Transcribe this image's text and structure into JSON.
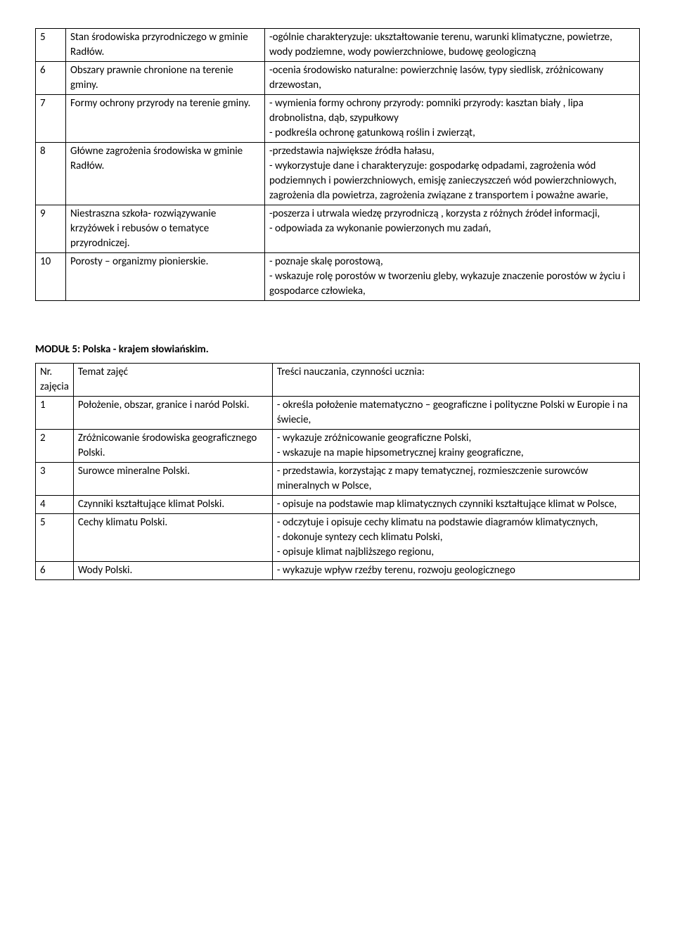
{
  "table1": {
    "rows": [
      {
        "n": "5",
        "topic": "Stan środowiska przyrodniczego w gminie Radłów.",
        "content": "-ogólnie charakteryzuje: ukształtowanie terenu, warunki klimatyczne, powietrze, wody podziemne, wody powierzchniowe, budowę geologiczną"
      },
      {
        "n": "6",
        "topic": "Obszary prawnie chronione na terenie gminy.",
        "content": "-ocenia środowisko naturalne: powierzchnię lasów, typy siedlisk, zróżnicowany drzewostan,"
      },
      {
        "n": "7",
        "topic": "Formy ochrony przyrody na terenie gminy.",
        "content": "- wymienia formy ochrony przyrody: pomniki przyrody: kasztan biały , lipa drobnolistna, dąb, szypułkowy\n- podkreśla ochronę gatunkową roślin i zwierząt,"
      },
      {
        "n": "8",
        "topic": "Główne zagrożenia środowiska w gminie Radłów.",
        "content": "-przedstawia największe źródła hałasu,\n- wykorzystuje dane i charakteryzuje: gospodarkę odpadami, zagrożenia wód podziemnych i powierzchniowych, emisję zanieczyszczeń wód powierzchniowych, zagrożenia dla powietrza, zagrożenia związane z transportem i poważne awarie,"
      },
      {
        "n": "9",
        "topic": "Niestraszna szkoła- rozwiązywanie krzyżówek i rebusów o tematyce przyrodniczej.",
        "content": "-poszerza i utrwala wiedzę przyrodniczą , korzysta z różnych źródeł informacji,\n- odpowiada za wykonanie powierzonych mu zadań,"
      },
      {
        "n": "10",
        "topic": "Porosty – organizmy pionierskie.",
        "content": "- poznaje skalę porostową,\n- wskazuje rolę porostów w tworzeniu gleby, wykazuje znaczenie porostów w życiu i gospodarce człowieka,"
      }
    ]
  },
  "module_heading": "MODUŁ 5: Polska - krajem słowiańskim.",
  "table2": {
    "header": {
      "n": "Nr. zajęcia",
      "topic": "Temat zajęć",
      "content": "Treści nauczania, czynności ucznia:"
    },
    "rows": [
      {
        "n": "1",
        "topic": "Położenie, obszar, granice i naród Polski.",
        "content": "- określa położenie matematyczno – geograficzne i polityczne Polski w Europie i na świecie,"
      },
      {
        "n": "2",
        "topic": "Zróżnicowanie środowiska geograficznego Polski.",
        "content": "- wykazuje zróżnicowanie geograficzne Polski,\n- wskazuje na mapie hipsometrycznej krainy geograficzne,"
      },
      {
        "n": "3",
        "topic": "Surowce mineralne Polski.",
        "content": "- przedstawia, korzystając z mapy tematycznej, rozmieszczenie surowców mineralnych w Polsce,"
      },
      {
        "n": "4",
        "topic": "Czynniki kształtujące klimat Polski.",
        "content": "- opisuje na podstawie map klimatycznych czynniki kształtujące klimat w Polsce,"
      },
      {
        "n": "5",
        "topic": "Cechy klimatu Polski.",
        "content": "- odczytuje i opisuje cechy klimatu na podstawie diagramów klimatycznych,\n- dokonuje syntezy cech klimatu Polski,\n- opisuje klimat najbliższego regionu,"
      },
      {
        "n": "6",
        "topic": "Wody Polski.",
        "content": "- wykazuje wpływ rzeźby terenu, rozwoju geologicznego"
      }
    ]
  }
}
